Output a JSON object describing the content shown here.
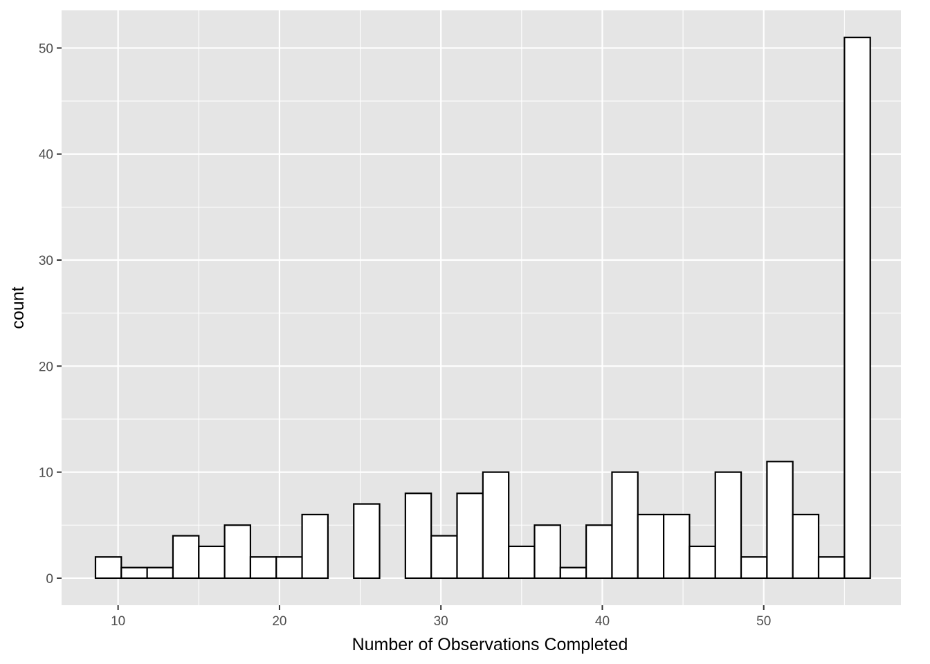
{
  "chart_data": {
    "type": "bar",
    "subtype": "histogram",
    "title": "",
    "xlabel": "Number of Observations Completed",
    "ylabel": "count",
    "xlim": [
      6.5,
      58.5
    ],
    "ylim": [
      -2.55,
      53.55
    ],
    "x_ticks": [
      10,
      20,
      30,
      40,
      50
    ],
    "x_tick_labels": [
      "10",
      "20",
      "30",
      "40",
      "50"
    ],
    "y_ticks": [
      0,
      10,
      20,
      30,
      40,
      50
    ],
    "y_tick_labels": [
      "0",
      "10",
      "20",
      "30",
      "40",
      "50"
    ],
    "bin_width": 1.6,
    "bins": [
      {
        "start": 8.6,
        "end": 10.2,
        "count": 2
      },
      {
        "start": 10.2,
        "end": 11.8,
        "count": 1
      },
      {
        "start": 11.8,
        "end": 13.4,
        "count": 1
      },
      {
        "start": 13.4,
        "end": 15.0,
        "count": 4
      },
      {
        "start": 15.0,
        "end": 16.6,
        "count": 3
      },
      {
        "start": 16.6,
        "end": 18.2,
        "count": 5
      },
      {
        "start": 18.2,
        "end": 19.8,
        "count": 2
      },
      {
        "start": 19.8,
        "end": 21.4,
        "count": 2
      },
      {
        "start": 21.4,
        "end": 23.0,
        "count": 6
      },
      {
        "start": 23.0,
        "end": 24.6,
        "count": 0
      },
      {
        "start": 24.6,
        "end": 26.2,
        "count": 7
      },
      {
        "start": 26.2,
        "end": 27.8,
        "count": 0
      },
      {
        "start": 27.8,
        "end": 29.4,
        "count": 8
      },
      {
        "start": 29.4,
        "end": 31.0,
        "count": 4
      },
      {
        "start": 31.0,
        "end": 32.6,
        "count": 8
      },
      {
        "start": 32.6,
        "end": 34.2,
        "count": 10
      },
      {
        "start": 34.2,
        "end": 35.8,
        "count": 3
      },
      {
        "start": 35.8,
        "end": 37.4,
        "count": 5
      },
      {
        "start": 37.4,
        "end": 39.0,
        "count": 1
      },
      {
        "start": 39.0,
        "end": 40.6,
        "count": 5
      },
      {
        "start": 40.6,
        "end": 42.2,
        "count": 10
      },
      {
        "start": 42.2,
        "end": 43.8,
        "count": 6
      },
      {
        "start": 43.8,
        "end": 45.4,
        "count": 6
      },
      {
        "start": 45.4,
        "end": 47.0,
        "count": 3
      },
      {
        "start": 47.0,
        "end": 48.6,
        "count": 10
      },
      {
        "start": 48.6,
        "end": 50.2,
        "count": 2
      },
      {
        "start": 50.2,
        "end": 51.8,
        "count": 11
      },
      {
        "start": 51.8,
        "end": 53.4,
        "count": 6
      },
      {
        "start": 53.4,
        "end": 55.0,
        "count": 2
      },
      {
        "start": 55.0,
        "end": 56.6,
        "count": 51
      }
    ],
    "grid": true,
    "legend": "none",
    "colors": {
      "panel_background": "#e5e5e5",
      "grid_line": "#ffffff",
      "bar_fill": "#ffffff",
      "bar_outline": "#000000",
      "tick_text": "#4d4d4d",
      "tick_mark": "#333333",
      "axis_title_text": "#000000"
    }
  }
}
